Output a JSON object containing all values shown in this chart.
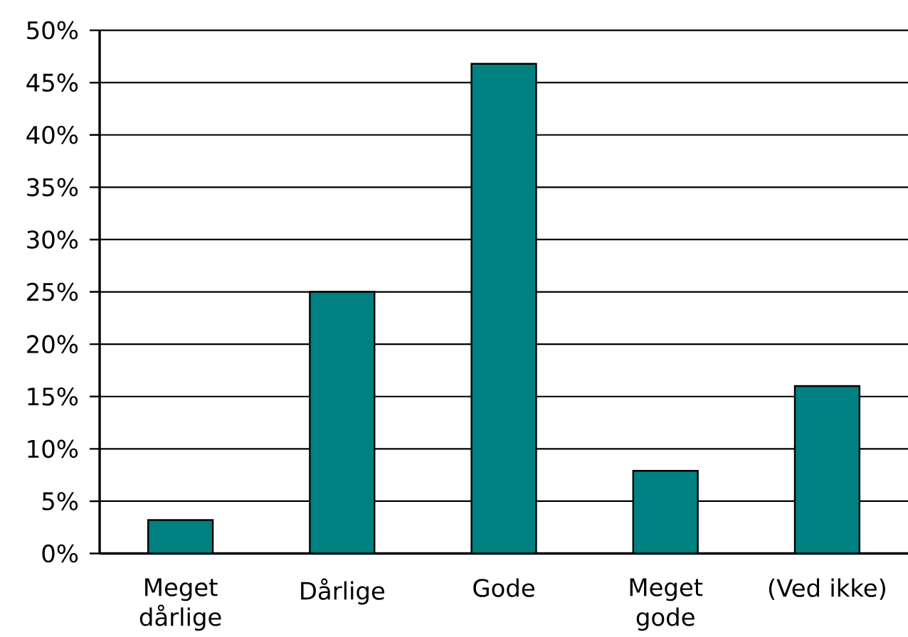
{
  "chart_data": {
    "type": "bar",
    "categories": [
      "Meget dårlige",
      "Dårlige",
      "Gode",
      "Meget gode",
      "(Ved ikke)"
    ],
    "values": [
      3.2,
      25,
      46.8,
      7.9,
      16
    ],
    "color": "#008080",
    "ylim": [
      0,
      50
    ],
    "yticks": [
      {
        "value": 0,
        "label": "0%"
      },
      {
        "value": 5,
        "label": "5%"
      },
      {
        "value": 10,
        "label": "10%"
      },
      {
        "value": 15,
        "label": "15%"
      },
      {
        "value": 20,
        "label": "20%"
      },
      {
        "value": 25,
        "label": "25%"
      },
      {
        "value": 30,
        "label": "30%"
      },
      {
        "value": 35,
        "label": "35%"
      },
      {
        "value": 40,
        "label": "40%"
      },
      {
        "value": 45,
        "label": "45%"
      },
      {
        "value": 50,
        "label": "50%"
      }
    ],
    "grid": "y"
  }
}
